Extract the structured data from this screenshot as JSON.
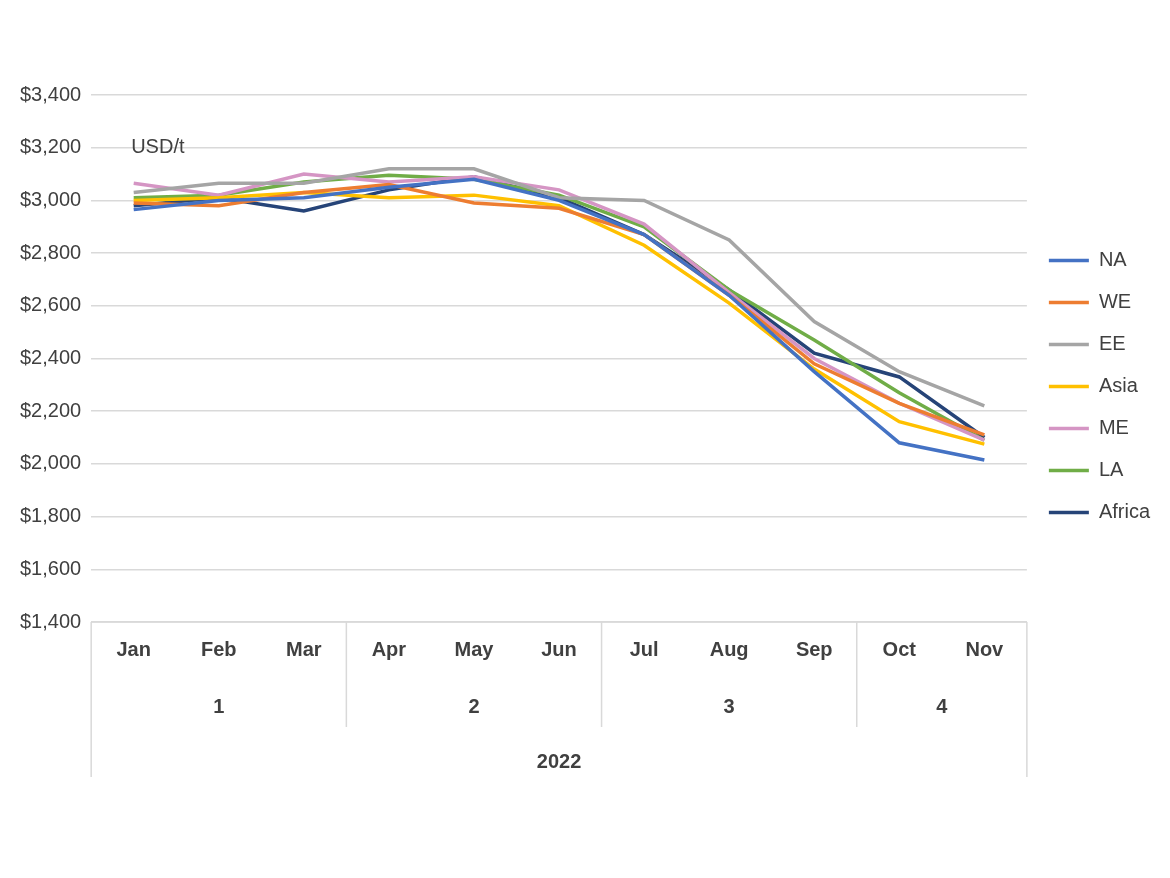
{
  "chart_data": {
    "type": "line",
    "annotation": "USD/t",
    "categories": [
      "Jan",
      "Feb",
      "Mar",
      "Apr",
      "May",
      "Jun",
      "Jul",
      "Aug",
      "Sep",
      "Oct",
      "Nov"
    ],
    "category_groups": [
      [
        "1",
        "1",
        "1",
        "2",
        "2",
        "2",
        "3",
        "3",
        "3",
        "4",
        "4"
      ],
      [
        "2022",
        "2022",
        "2022",
        "2022",
        "2022",
        "2022",
        "2022",
        "2022",
        "2022",
        "2022",
        "2022"
      ]
    ],
    "ylim": [
      1400,
      3400
    ],
    "yticks": [
      {
        "value": 1400,
        "label": "$1,400"
      },
      {
        "value": 1600,
        "label": "$1,600"
      },
      {
        "value": 1800,
        "label": "$1,800"
      },
      {
        "value": 2000,
        "label": "$2,000"
      },
      {
        "value": 2200,
        "label": "$2,200"
      },
      {
        "value": 2400,
        "label": "$2,400"
      },
      {
        "value": 2600,
        "label": "$2,600"
      },
      {
        "value": 2800,
        "label": "$2,800"
      },
      {
        "value": 3000,
        "label": "$3,000"
      },
      {
        "value": 3200,
        "label": "$3,200"
      },
      {
        "value": 3400,
        "label": "$3,400"
      }
    ],
    "grid": true,
    "legend": "right",
    "series": [
      {
        "name": "NA",
        "color": "#4472c4",
        "values": [
          2965,
          3000,
          3010,
          3050,
          3080,
          3000,
          2870,
          2640,
          2350,
          2080,
          2015
        ]
      },
      {
        "name": "WE",
        "color": "#ed7d31",
        "values": [
          2990,
          2980,
          3030,
          3060,
          2990,
          2970,
          2870,
          2640,
          2380,
          2230,
          2110
        ]
      },
      {
        "name": "EE",
        "color": "#a5a5a5",
        "values": [
          3030,
          3065,
          3065,
          3120,
          3120,
          3010,
          3000,
          2850,
          2540,
          2350,
          2220
        ]
      },
      {
        "name": "Asia",
        "color": "#ffc000",
        "values": [
          3000,
          3010,
          3030,
          3010,
          3020,
          2980,
          2830,
          2610,
          2360,
          2160,
          2075
        ]
      },
      {
        "name": "ME",
        "color": "#d595c4",
        "values": [
          3065,
          3020,
          3100,
          3070,
          3090,
          3040,
          2910,
          2650,
          2400,
          2230,
          2090
        ]
      },
      {
        "name": "LA",
        "color": "#70ad47",
        "values": [
          3010,
          3020,
          3070,
          3095,
          3080,
          3020,
          2900,
          2660,
          2470,
          2270,
          2090
        ]
      },
      {
        "name": "Africa",
        "color": "#264478",
        "values": [
          2980,
          3010,
          2960,
          3040,
          3090,
          3010,
          2870,
          2660,
          2420,
          2330,
          2100
        ]
      }
    ]
  }
}
